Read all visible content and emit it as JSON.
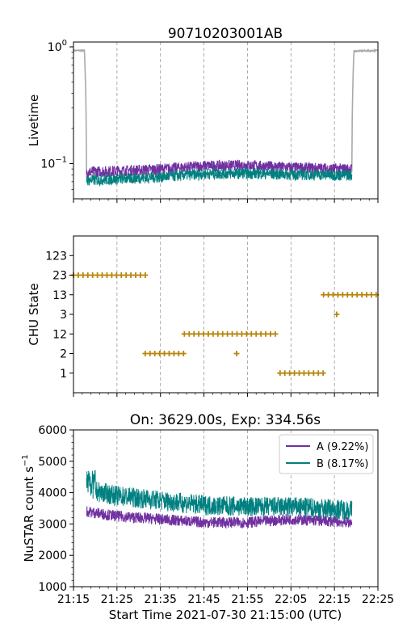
{
  "figure_title": "90710203001AB",
  "chart_data": [
    {
      "type": "line",
      "name": "livetime",
      "title": "90710203001AB",
      "ylabel": "Livetime",
      "yscale": "log",
      "ylim": [
        0.05,
        1.1
      ],
      "xlim_min": [
        0,
        70
      ],
      "ytick_labels": [
        {
          "v": 1,
          "base": "10",
          "exp": "0"
        },
        {
          "v": 0.1,
          "base": "10",
          "exp": "−1"
        }
      ],
      "series": [
        {
          "color": "#a9a9a9",
          "points": [
            [
              0,
              0.93
            ],
            [
              2.5,
              0.93
            ],
            [
              3,
              0.08
            ],
            [
              64,
              0.085
            ],
            [
              64.5,
              0.92
            ],
            [
              70,
              0.93
            ]
          ]
        },
        {
          "color": "#7030a0",
          "points": [
            [
              3,
              0.085
            ],
            [
              10,
              0.087
            ],
            [
              20,
              0.09
            ],
            [
              30,
              0.096
            ],
            [
              40,
              0.097
            ],
            [
              50,
              0.093
            ],
            [
              64,
              0.09
            ]
          ]
        },
        {
          "color": "#008080",
          "points": [
            [
              3,
              0.072
            ],
            [
              10,
              0.074
            ],
            [
              20,
              0.077
            ],
            [
              30,
              0.082
            ],
            [
              40,
              0.083
            ],
            [
              50,
              0.081
            ],
            [
              64,
              0.08
            ]
          ]
        }
      ],
      "grid_x": true
    },
    {
      "type": "scatter",
      "name": "chu",
      "ylabel": "CHU State",
      "categories": [
        "1",
        "2",
        "12",
        "3",
        "13",
        "23",
        "123"
      ],
      "marker_color": "#b8860b",
      "segments": [
        {
          "state": "23",
          "x0": 0,
          "x1": 16.5
        },
        {
          "state": "2",
          "x0": 16.5,
          "x1": 25.5
        },
        {
          "state": "12",
          "x0": 25.5,
          "x1": 47
        },
        {
          "state": "2",
          "x0": 37.5,
          "x1": 37.5
        },
        {
          "state": "1",
          "x0": 47.5,
          "x1": 58
        },
        {
          "state": "13",
          "x0": 57.5,
          "x1": 70
        },
        {
          "state": "3",
          "x0": 60.5,
          "x1": 60.5
        }
      ],
      "grid_x": true
    },
    {
      "type": "line",
      "name": "rate",
      "title": "On: 3629.00s, Exp: 334.56s",
      "xlabel": "Start Time 2021-07-30 21:15:00 (UTC)",
      "ylabel": "NuSTAR count s",
      "ylabel_exp": "−1",
      "ylim": [
        1000,
        6000
      ],
      "xlim_min": [
        0,
        70
      ],
      "yticks": [
        "1000",
        "2000",
        "3000",
        "4000",
        "5000",
        "6000"
      ],
      "xticks": [
        "21:15",
        "21:25",
        "21:35",
        "21:45",
        "21:55",
        "22:05",
        "22:15",
        "22:25"
      ],
      "series": [
        {
          "name": "A (9.22%)",
          "color": "#7030a0",
          "points": [
            [
              3,
              3400
            ],
            [
              10,
              3250
            ],
            [
              20,
              3150
            ],
            [
              30,
              3050
            ],
            [
              40,
              3050
            ],
            [
              50,
              3150
            ],
            [
              64,
              3050
            ]
          ],
          "noise": 180
        },
        {
          "name": "B (8.17%)",
          "color": "#008080",
          "points": [
            [
              3,
              4100
            ],
            [
              10,
              3900
            ],
            [
              20,
              3750
            ],
            [
              30,
              3600
            ],
            [
              40,
              3550
            ],
            [
              50,
              3550
            ],
            [
              64,
              3450
            ]
          ],
          "noise": 320
        }
      ],
      "legend_position": "upper-right",
      "grid_x": true
    }
  ]
}
